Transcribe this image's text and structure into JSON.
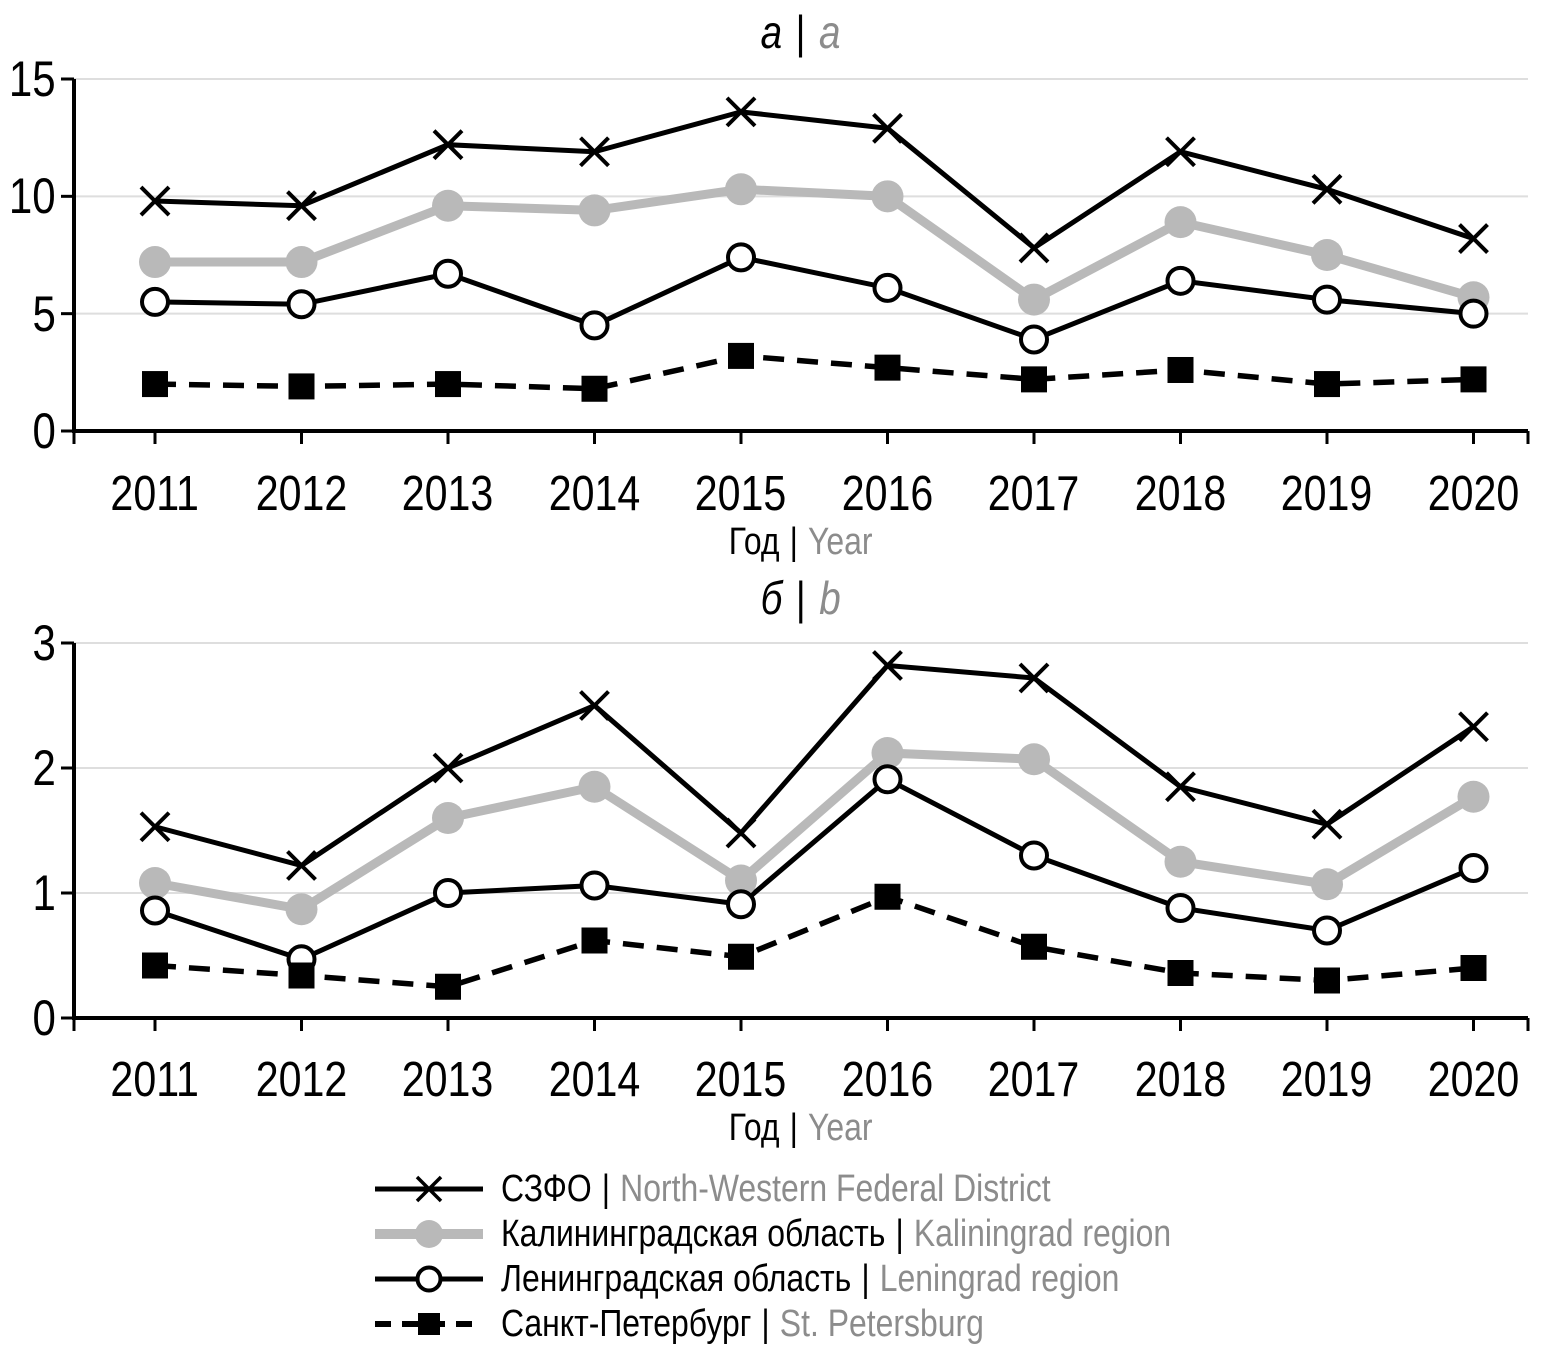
{
  "text": {
    "separator": "|"
  },
  "colors": {
    "series_black": "#000000",
    "series_gray": "#b9b9b9",
    "gridline": "#dedede",
    "text_primary": "#000000",
    "text_secondary": "#8c8c8c",
    "background": "#ffffff"
  },
  "chart_data": [
    {
      "type": "line",
      "panel_label_ru": "а",
      "panel_label_en": "a",
      "x": [
        2011,
        2012,
        2013,
        2014,
        2015,
        2016,
        2017,
        2018,
        2019,
        2020
      ],
      "xlabel_ru": "Год",
      "xlabel_en": "Year",
      "ylim": [
        0,
        15
      ],
      "yticks": [
        0,
        5,
        10,
        15
      ],
      "grid": "horizontal",
      "series": [
        {
          "name_ru": "СЗФО",
          "name_en": "North-Western Federal District",
          "marker": "x-cross",
          "line": "solid",
          "color": "#000000",
          "values": [
            9.8,
            9.6,
            12.2,
            11.9,
            13.6,
            12.9,
            7.8,
            11.9,
            10.3,
            8.2
          ]
        },
        {
          "name_ru": "Калининградская область",
          "name_en": "Kaliningrad region",
          "marker": "filled-circle",
          "line": "solid",
          "color": "#b9b9b9",
          "values": [
            7.2,
            7.2,
            9.6,
            9.4,
            10.3,
            10.0,
            5.6,
            8.9,
            7.5,
            5.7
          ]
        },
        {
          "name_ru": "Ленинградская область",
          "name_en": "Leningrad region",
          "marker": "open-circle",
          "line": "solid",
          "color": "#000000",
          "values": [
            5.5,
            5.4,
            6.7,
            4.5,
            7.4,
            6.1,
            3.9,
            6.4,
            5.6,
            5.0
          ]
        },
        {
          "name_ru": "Санкт-Петербург",
          "name_en": "St. Petersburg",
          "marker": "filled-square",
          "line": "dashed",
          "color": "#000000",
          "values": [
            2.0,
            1.9,
            2.0,
            1.8,
            3.2,
            2.7,
            2.2,
            2.6,
            2.0,
            2.2
          ]
        }
      ]
    },
    {
      "type": "line",
      "panel_label_ru": "б",
      "panel_label_en": "b",
      "x": [
        2011,
        2012,
        2013,
        2014,
        2015,
        2016,
        2017,
        2018,
        2019,
        2020
      ],
      "xlabel_ru": "Год",
      "xlabel_en": "Year",
      "ylim": [
        0,
        3
      ],
      "yticks": [
        0,
        1,
        2,
        3
      ],
      "grid": "horizontal",
      "series": [
        {
          "name_ru": "СЗФО",
          "name_en": "North-Western Federal District",
          "marker": "x-cross",
          "line": "solid",
          "color": "#000000",
          "values": [
            1.53,
            1.22,
            2.0,
            2.5,
            1.48,
            2.82,
            2.72,
            1.85,
            1.55,
            2.33
          ]
        },
        {
          "name_ru": "Калининградская область",
          "name_en": "Kaliningrad region",
          "marker": "filled-circle",
          "line": "solid",
          "color": "#b9b9b9",
          "values": [
            1.08,
            0.87,
            1.6,
            1.85,
            1.1,
            2.12,
            2.07,
            1.25,
            1.07,
            1.77
          ]
        },
        {
          "name_ru": "Ленинградская область",
          "name_en": "Leningrad region",
          "marker": "open-circle",
          "line": "solid",
          "color": "#000000",
          "values": [
            0.86,
            0.47,
            1.0,
            1.06,
            0.91,
            1.91,
            1.3,
            0.88,
            0.7,
            1.2
          ]
        },
        {
          "name_ru": "Санкт-Петербург",
          "name_en": "St. Petersburg",
          "marker": "filled-square",
          "line": "dashed",
          "color": "#000000",
          "values": [
            0.42,
            0.34,
            0.25,
            0.62,
            0.49,
            0.97,
            0.57,
            0.36,
            0.3,
            0.4
          ]
        }
      ]
    }
  ],
  "legend": {
    "position": "bottom",
    "items": [
      {
        "label_ru": "СЗФО",
        "label_en": "North-Western Federal District",
        "marker": "x-cross",
        "line": "solid",
        "color": "#000000"
      },
      {
        "label_ru": "Калининградская область",
        "label_en": "Kaliningrad region",
        "marker": "filled-circle",
        "line": "solid",
        "color": "#b9b9b9"
      },
      {
        "label_ru": "Ленинградская область",
        "label_en": "Leningrad region",
        "marker": "open-circle",
        "line": "solid",
        "color": "#000000"
      },
      {
        "label_ru": "Санкт-Петербург",
        "label_en": "St. Petersburg",
        "marker": "filled-square",
        "line": "dashed",
        "color": "#000000"
      }
    ]
  }
}
